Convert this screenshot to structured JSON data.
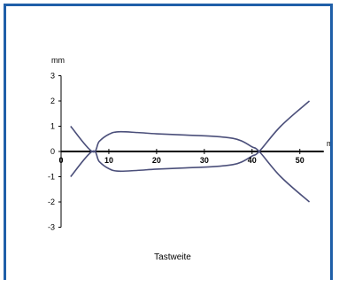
{
  "chart_data": {
    "type": "line",
    "title": "",
    "xlabel": "Tastweite",
    "ylabel": "mm",
    "x_unit_label": "m",
    "xlim": [
      0,
      55
    ],
    "ylim": [
      -3,
      3
    ],
    "x_ticks": [
      0,
      10,
      20,
      30,
      40,
      50
    ],
    "y_ticks": [
      3,
      2,
      1,
      0,
      -1,
      -2,
      -3
    ],
    "grid": false,
    "legend": "none",
    "series": [
      {
        "color": "#4b4f7a",
        "points": [
          [
            2,
            1
          ],
          [
            6.5,
            0
          ],
          [
            8,
            0.4
          ],
          [
            10,
            0.68
          ],
          [
            12,
            0.78
          ],
          [
            16,
            0.75
          ],
          [
            20,
            0.7
          ],
          [
            26,
            0.65
          ],
          [
            32,
            0.6
          ],
          [
            36,
            0.52
          ],
          [
            38,
            0.4
          ],
          [
            40,
            0.18
          ],
          [
            41.5,
            0
          ],
          [
            46,
            -1
          ],
          [
            52,
            -2
          ]
        ]
      },
      {
        "color": "#4b4f7a",
        "points": [
          [
            2,
            -1
          ],
          [
            6.5,
            0
          ],
          [
            8,
            -0.4
          ],
          [
            10,
            -0.68
          ],
          [
            12,
            -0.78
          ],
          [
            16,
            -0.75
          ],
          [
            20,
            -0.7
          ],
          [
            26,
            -0.65
          ],
          [
            32,
            -0.6
          ],
          [
            36,
            -0.52
          ],
          [
            38,
            -0.4
          ],
          [
            40,
            -0.18
          ],
          [
            41.5,
            0
          ],
          [
            46,
            1
          ],
          [
            52,
            2
          ]
        ]
      }
    ]
  }
}
